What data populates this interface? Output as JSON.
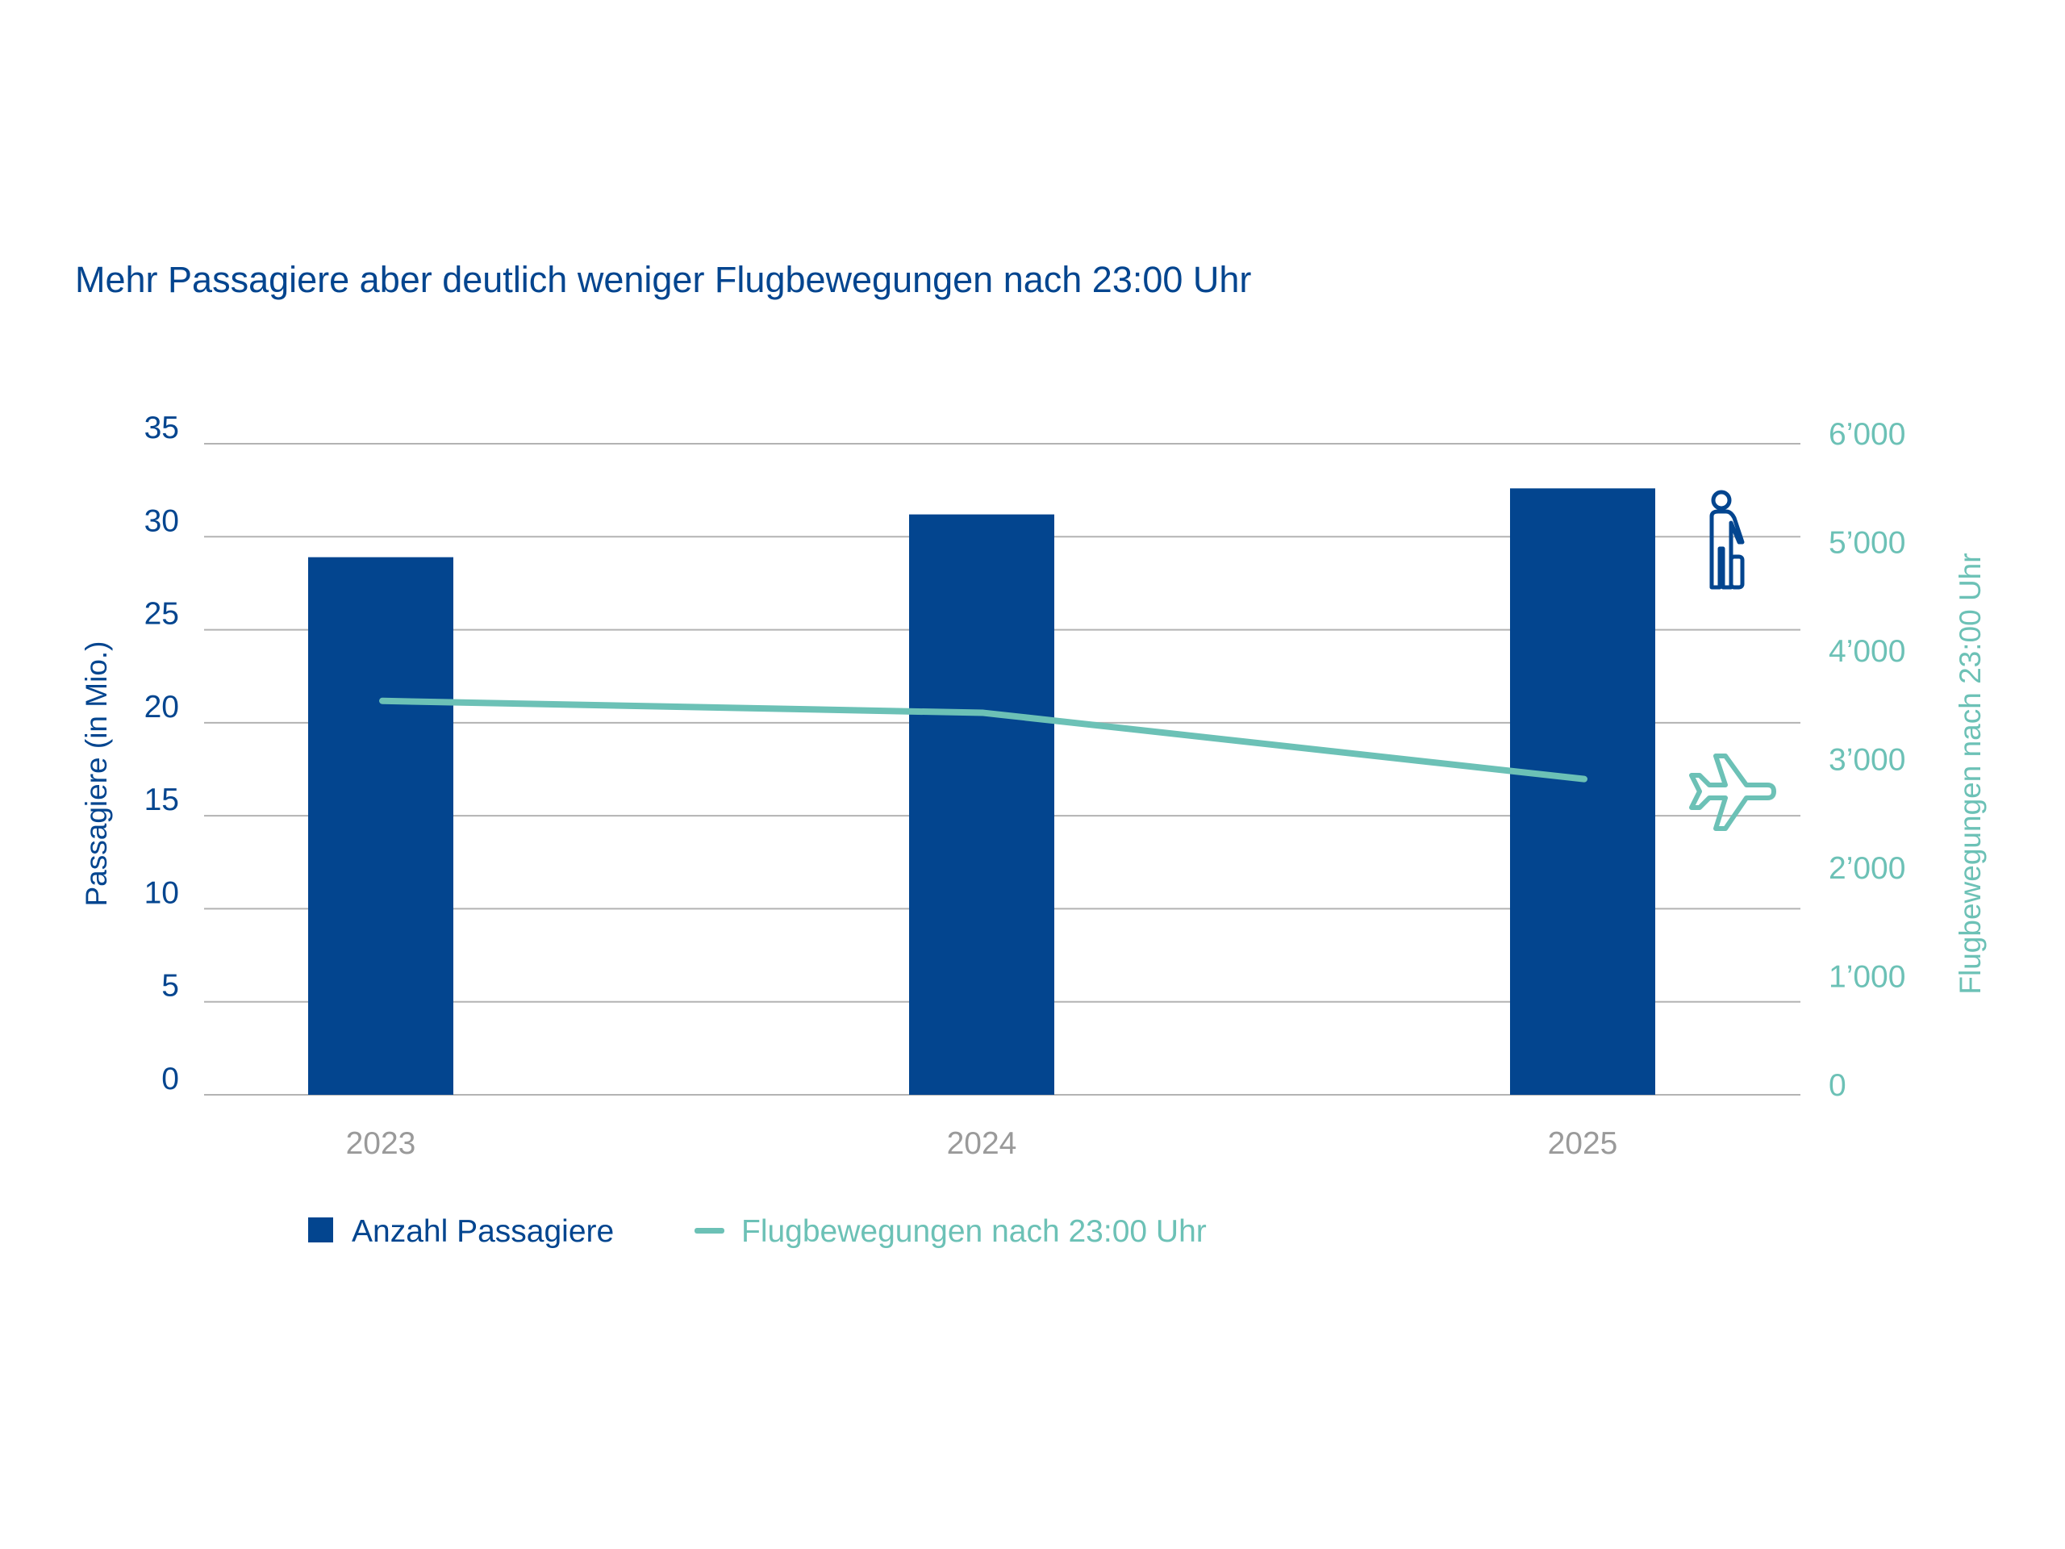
{
  "colors": {
    "passengers": "#03458f",
    "flights": "#6cc1b6",
    "grid": "#b3b3b3",
    "year_labels": "#9a9a9a"
  },
  "icons": {
    "passenger": "person-with-suitcase-icon",
    "flight": "airplane-icon"
  },
  "chart_data": {
    "type": "bar+line",
    "title": "Mehr Passagiere aber deutlich weniger Flugbewegungen nach 23:00 Uhr",
    "categories": [
      "2023",
      "2024",
      "2025"
    ],
    "series": [
      {
        "name": "Anzahl Passagiere",
        "type": "bar",
        "axis": "left",
        "values": [
          28.9,
          31.2,
          32.6
        ]
      },
      {
        "name": "Flugbewegungen nach 23:00 Uhr",
        "type": "line",
        "axis": "right",
        "values": [
          3630,
          3520,
          2910
        ]
      }
    ],
    "y_left": {
      "label": "Passagiere (in Mio.)",
      "range": [
        0,
        35
      ],
      "ticks": [
        "0",
        "5",
        "10",
        "15",
        "20",
        "25",
        "30",
        "35"
      ]
    },
    "y_right": {
      "label": "Flugbewegungen nach 23:00 Uhr",
      "range": [
        0,
        6000
      ],
      "ticks": [
        "0",
        "1’000",
        "2’000",
        "3’000",
        "4’000",
        "5’000",
        "6’000"
      ]
    },
    "grid": true,
    "legend_position": "bottom-left"
  }
}
